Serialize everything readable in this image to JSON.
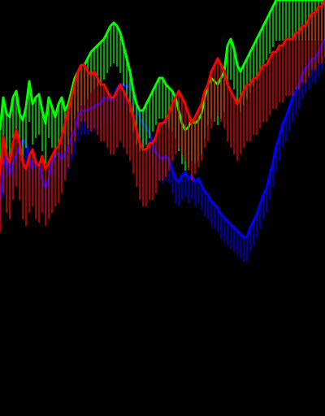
{
  "chart_data": {
    "type": "line",
    "title": "",
    "xlabel": "",
    "ylabel": "",
    "grid": false,
    "legend": "none",
    "xlim": [
      0,
      100
    ],
    "ylim": [
      0,
      100
    ],
    "background": "#000000",
    "series": [
      {
        "color": "#0000ff",
        "style": "line",
        "x": [
          0,
          1,
          2,
          3,
          4,
          5,
          6,
          7,
          8,
          9,
          10,
          11,
          12,
          13,
          14,
          15,
          16,
          17,
          18,
          19,
          20,
          21,
          22,
          23,
          24,
          25,
          26,
          27,
          28,
          29,
          30,
          31,
          32,
          33,
          34,
          35,
          36,
          37,
          38,
          39,
          40,
          41,
          42,
          43,
          44,
          45,
          46,
          47,
          48,
          49,
          50,
          51,
          52,
          53,
          54,
          55,
          56,
          57,
          58,
          59,
          60,
          61,
          62,
          63,
          64,
          65,
          66,
          67,
          68,
          69,
          70,
          71,
          72,
          73,
          74,
          75,
          76,
          77,
          78,
          79,
          80,
          81,
          82,
          83,
          84,
          85,
          86,
          87,
          88,
          89,
          90,
          91,
          92,
          93,
          94,
          95,
          96,
          97,
          98,
          99,
          100
        ],
        "y": [
          38,
          47,
          53,
          46,
          50,
          52,
          55,
          57,
          56,
          52,
          48,
          50,
          50,
          45,
          42,
          45,
          50,
          52,
          53,
          51,
          53,
          55,
          58,
          60,
          64,
          66,
          66,
          66,
          67,
          67,
          68,
          68,
          70,
          70,
          69,
          70,
          73,
          74,
          74,
          73,
          74,
          72,
          68,
          64,
          62,
          61,
          59,
          56,
          53,
          52,
          51,
          52,
          51,
          48,
          45,
          44,
          46,
          47,
          45,
          46,
          44,
          45,
          43,
          41,
          40,
          38,
          37,
          36,
          34,
          33,
          32,
          31,
          30,
          29,
          28,
          27,
          27,
          30,
          32,
          34,
          37,
          40,
          42,
          46,
          50,
          55,
          58,
          62,
          64,
          67,
          70,
          72,
          74,
          77,
          79,
          80,
          82,
          82,
          84,
          86,
          88
        ]
      },
      {
        "color": "#00ff00",
        "style": "line",
        "x": [
          0,
          1,
          2,
          3,
          4,
          5,
          6,
          7,
          8,
          9,
          10,
          11,
          12,
          13,
          14,
          15,
          16,
          17,
          18,
          19,
          20,
          21,
          22,
          23,
          24,
          25,
          26,
          27,
          28,
          29,
          30,
          31,
          32,
          33,
          34,
          35,
          36,
          37,
          38,
          39,
          40,
          41,
          42,
          43,
          44,
          45,
          46,
          47,
          48,
          49,
          50,
          51,
          52,
          53,
          54,
          55,
          56,
          57,
          58,
          59,
          60,
          61,
          62,
          63,
          64,
          65,
          66,
          67,
          68,
          69,
          70,
          71,
          72,
          73,
          74,
          75,
          76,
          77,
          78,
          79,
          80,
          81,
          82,
          83,
          84,
          85,
          86,
          87,
          88,
          89,
          90,
          91,
          92,
          93,
          94,
          95,
          96,
          97,
          98,
          99,
          100
        ],
        "y": [
          60,
          70,
          65,
          64,
          70,
          72,
          65,
          63,
          67,
          75,
          68,
          70,
          71,
          66,
          62,
          70,
          67,
          64,
          68,
          70,
          66,
          68,
          72,
          76,
          78,
          80,
          80,
          82,
          84,
          85,
          86,
          87,
          88,
          90,
          92,
          93,
          92,
          90,
          86,
          82,
          78,
          72,
          68,
          66,
          66,
          68,
          70,
          72,
          74,
          76,
          76,
          74,
          73,
          72,
          70,
          66,
          62,
          60,
          61,
          63,
          62,
          63,
          65,
          70,
          74,
          76,
          75,
          74,
          76,
          78,
          86,
          88,
          85,
          80,
          78,
          80,
          82,
          84,
          86,
          88,
          90,
          92,
          94,
          96,
          98,
          100,
          100,
          100,
          100,
          100,
          100,
          100,
          100,
          100,
          100,
          100,
          100,
          100,
          100,
          100,
          100
        ]
      },
      {
        "color": "#ff0000",
        "style": "line",
        "x": [
          0,
          1,
          2,
          3,
          4,
          5,
          6,
          7,
          8,
          9,
          10,
          11,
          12,
          13,
          14,
          15,
          16,
          17,
          18,
          19,
          20,
          21,
          22,
          23,
          24,
          25,
          26,
          27,
          28,
          29,
          30,
          31,
          32,
          33,
          34,
          35,
          36,
          37,
          38,
          39,
          40,
          41,
          42,
          43,
          44,
          45,
          46,
          47,
          48,
          49,
          50,
          51,
          52,
          53,
          54,
          55,
          56,
          57,
          58,
          59,
          60,
          61,
          62,
          63,
          64,
          65,
          66,
          67,
          68,
          69,
          70,
          71,
          72,
          73,
          74,
          75,
          76,
          77,
          78,
          79,
          80,
          81,
          82,
          83,
          84,
          85,
          86,
          87,
          88,
          89,
          90,
          91,
          92,
          93,
          94,
          95,
          96,
          97,
          98,
          99,
          100
        ],
        "y": [
          46,
          58,
          52,
          50,
          56,
          60,
          56,
          50,
          48,
          52,
          54,
          50,
          49,
          52,
          48,
          50,
          52,
          54,
          55,
          58,
          62,
          66,
          70,
          74,
          78,
          80,
          80,
          78,
          77,
          78,
          76,
          74,
          74,
          72,
          70,
          70,
          72,
          74,
          72,
          70,
          68,
          64,
          60,
          56,
          54,
          54,
          56,
          56,
          58,
          62,
          62,
          63,
          65,
          68,
          70,
          72,
          70,
          68,
          65,
          62,
          64,
          66,
          68,
          72,
          74,
          78,
          80,
          82,
          80,
          78,
          74,
          72,
          70,
          68,
          70,
          72,
          74,
          74,
          76,
          76,
          78,
          80,
          80,
          82,
          84,
          84,
          86,
          86,
          88,
          88,
          88,
          90,
          90,
          92,
          92,
          94,
          96,
          96,
          98,
          98,
          100
        ]
      }
    ]
  }
}
